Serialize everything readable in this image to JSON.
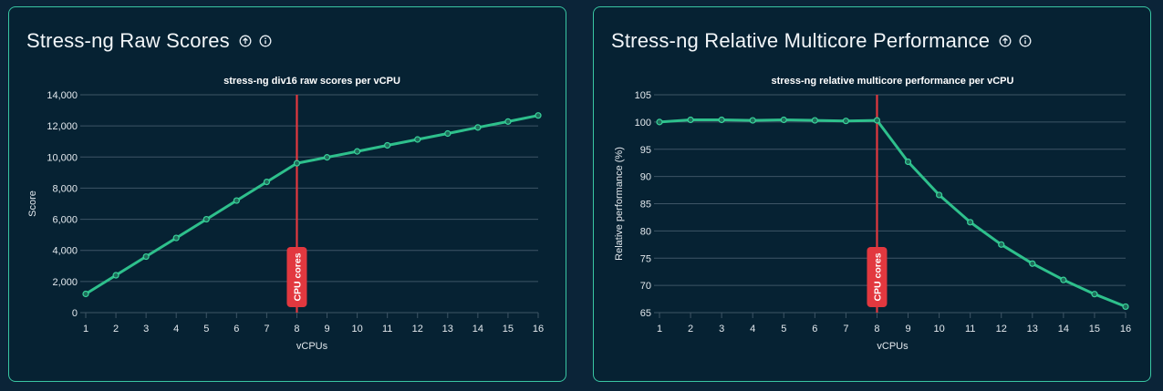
{
  "cards": [
    {
      "title": "Stress-ng Raw Scores"
    },
    {
      "title": "Stress-ng Relative Multicore Performance"
    }
  ],
  "chart_data": [
    {
      "type": "line",
      "title": "stress-ng div16 raw scores per vCPU",
      "xlabel": "vCPUs",
      "ylabel": "Score",
      "x": [
        1,
        2,
        3,
        4,
        5,
        6,
        7,
        8,
        9,
        10,
        11,
        12,
        13,
        14,
        15,
        16
      ],
      "x_ticks": [
        "1",
        "2",
        "3",
        "4",
        "5",
        "6",
        "7",
        "8",
        "9",
        "10",
        "11",
        "12",
        "13",
        "14",
        "15",
        "16"
      ],
      "ylim": [
        0,
        14000
      ],
      "y_ticks": [
        0,
        2000,
        4000,
        6000,
        8000,
        10000,
        12000,
        14000
      ],
      "y_tick_labels": [
        "0",
        "2,000",
        "4,000",
        "6,000",
        "8,000",
        "10,000",
        "12,000",
        "14,000"
      ],
      "series": [
        {
          "values": [
            1200,
            2400,
            3600,
            4800,
            6000,
            7200,
            8400,
            9600,
            9980,
            10360,
            10750,
            11130,
            11510,
            11900,
            12280,
            12670
          ],
          "color": "#2ec08c"
        }
      ],
      "reference_line": {
        "x": 8,
        "label": "CPU cores",
        "color": "#e2383f"
      },
      "grid": true
    },
    {
      "type": "line",
      "title": "stress-ng relative multicore performance per vCPU",
      "xlabel": "vCPUs",
      "ylabel": "Relative performance (%)",
      "x": [
        1,
        2,
        3,
        4,
        5,
        6,
        7,
        8,
        9,
        10,
        11,
        12,
        13,
        14,
        15,
        16
      ],
      "x_ticks": [
        "1",
        "2",
        "3",
        "4",
        "5",
        "6",
        "7",
        "8",
        "9",
        "10",
        "11",
        "12",
        "13",
        "14",
        "15",
        "16"
      ],
      "ylim": [
        65,
        105
      ],
      "y_ticks": [
        65,
        70,
        75,
        80,
        85,
        90,
        95,
        100,
        105
      ],
      "y_tick_labels": [
        "65",
        "70",
        "75",
        "80",
        "85",
        "90",
        "95",
        "100",
        "105"
      ],
      "series": [
        {
          "values": [
            100,
            100.4,
            100.4,
            100.3,
            100.4,
            100.3,
            100.2,
            100.3,
            92.7,
            86.6,
            81.6,
            77.5,
            74.0,
            71.0,
            68.4,
            66.1
          ],
          "color": "#2ec08c"
        }
      ],
      "reference_line": {
        "x": 8,
        "label": "CPU cores",
        "color": "#e2383f"
      },
      "grid": true
    }
  ]
}
